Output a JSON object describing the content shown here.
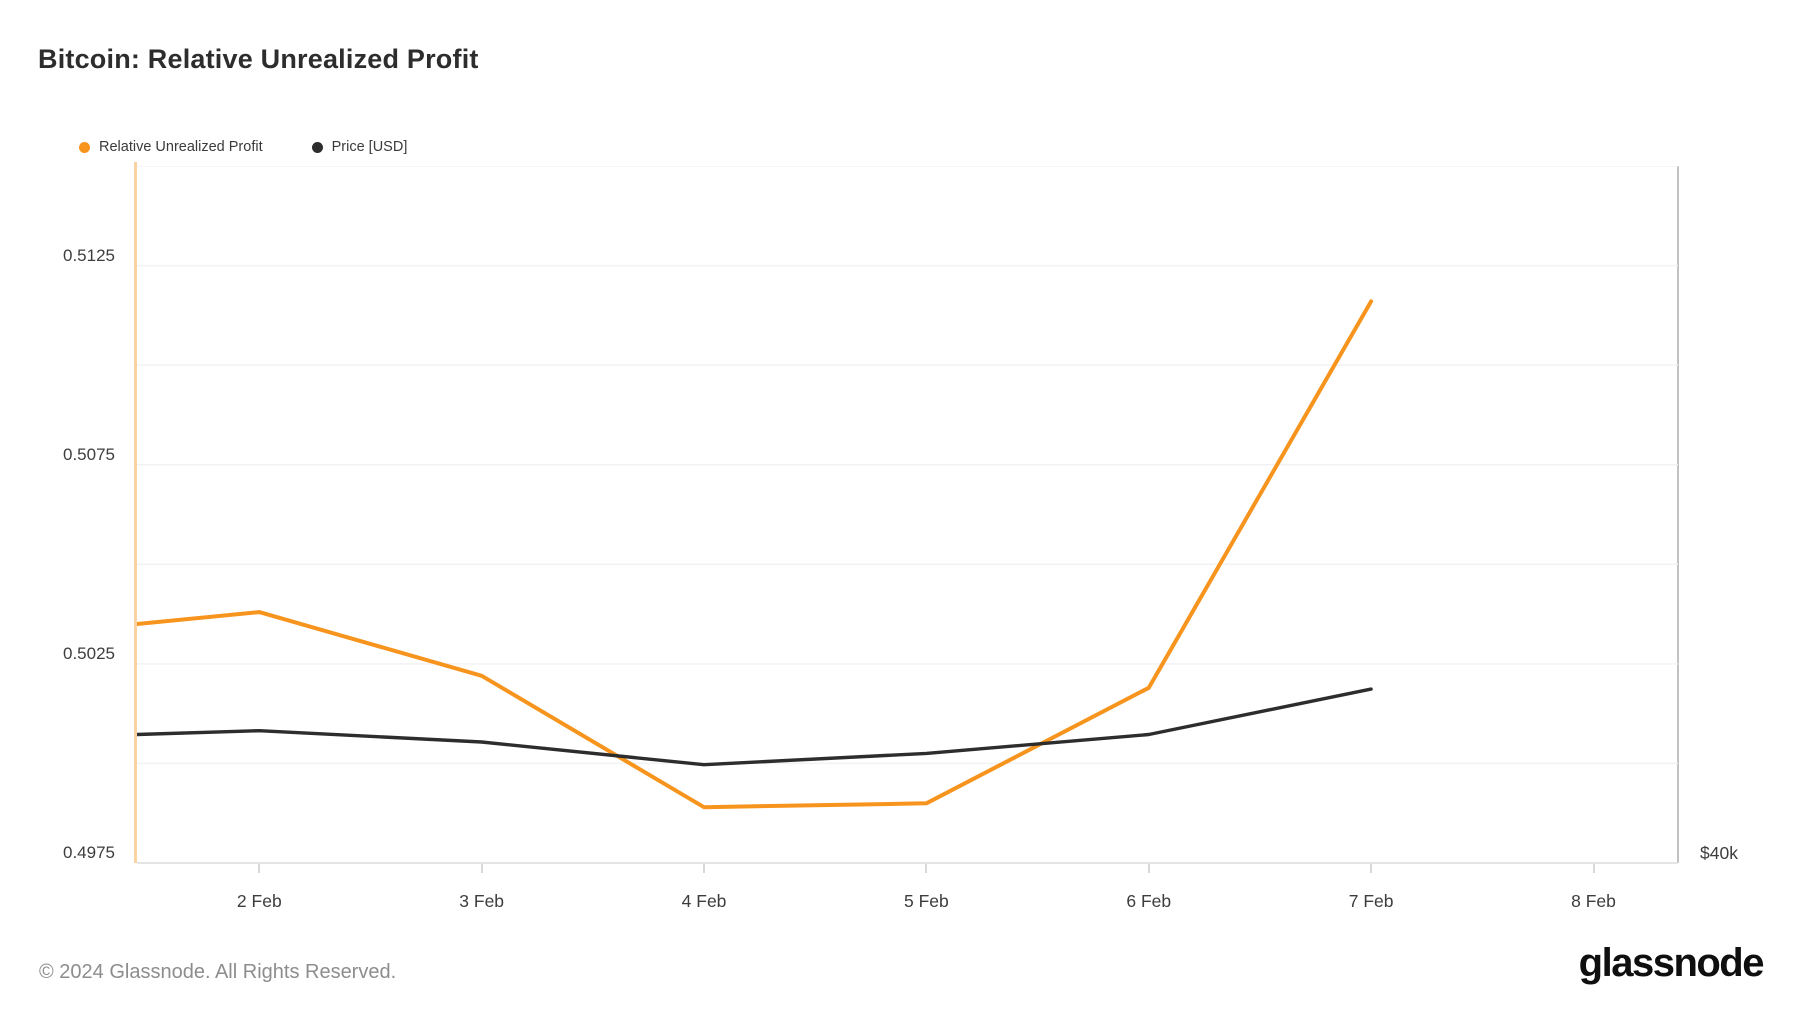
{
  "header": {
    "title": "Bitcoin: Relative Unrealized Profit"
  },
  "legend": {
    "items": [
      {
        "label": "Relative Unrealized Profit",
        "color": "#f7941d"
      },
      {
        "label": "Price [USD]",
        "color": "#2d2d2d"
      }
    ]
  },
  "chart_data": {
    "type": "line",
    "title": "Bitcoin: Relative Unrealized Profit",
    "x_axis": {
      "unit": "day of February",
      "lim": [
        1.45,
        8.38
      ],
      "ticks": [
        {
          "v": 2,
          "label": "2 Feb"
        },
        {
          "v": 3,
          "label": "3 Feb"
        },
        {
          "v": 4,
          "label": "4 Feb"
        },
        {
          "v": 5,
          "label": "5 Feb"
        },
        {
          "v": 6,
          "label": "6 Feb"
        },
        {
          "v": 7,
          "label": "7 Feb"
        },
        {
          "v": 8,
          "label": "8 Feb"
        }
      ]
    },
    "left_axis": {
      "lim": [
        0.4975,
        0.515
      ],
      "grid_values": [
        0.5,
        0.5025,
        0.505,
        0.5075,
        0.51,
        0.5125,
        0.515
      ],
      "labeled_ticks": [
        {
          "v": 0.5125,
          "label": "0.5125"
        },
        {
          "v": 0.5075,
          "label": "0.5075"
        },
        {
          "v": 0.5025,
          "label": "0.5025"
        },
        {
          "v": 0.4975,
          "label": "0.4975"
        }
      ]
    },
    "right_axis": {
      "lim": [
        40000,
        58440
      ],
      "labeled_ticks": [
        {
          "v": 40000,
          "label": "$40k"
        }
      ]
    },
    "grid": "horizontal-only",
    "legend_position": "top-left",
    "series": [
      {
        "name": "Relative Unrealized Profit",
        "axis": "left",
        "color": "#f7941d",
        "stroke_width": 4,
        "x": [
          1.45,
          2,
          3,
          4,
          5,
          6,
          7
        ],
        "values": [
          0.5035,
          0.5038,
          0.5022,
          0.4989,
          0.499,
          0.5019,
          0.5116
        ]
      },
      {
        "name": "Price [USD]",
        "axis": "right",
        "color": "#2d2d2d",
        "stroke_width": 3.4,
        "x": [
          1.45,
          2,
          3,
          4,
          5,
          6,
          7
        ],
        "values": [
          43400,
          43500,
          43200,
          42600,
          42900,
          43400,
          44600
        ]
      }
    ]
  },
  "footer": {
    "copyright": "© 2024 Glassnode. All Rights Reserved.",
    "logo_text": "glassnode"
  }
}
